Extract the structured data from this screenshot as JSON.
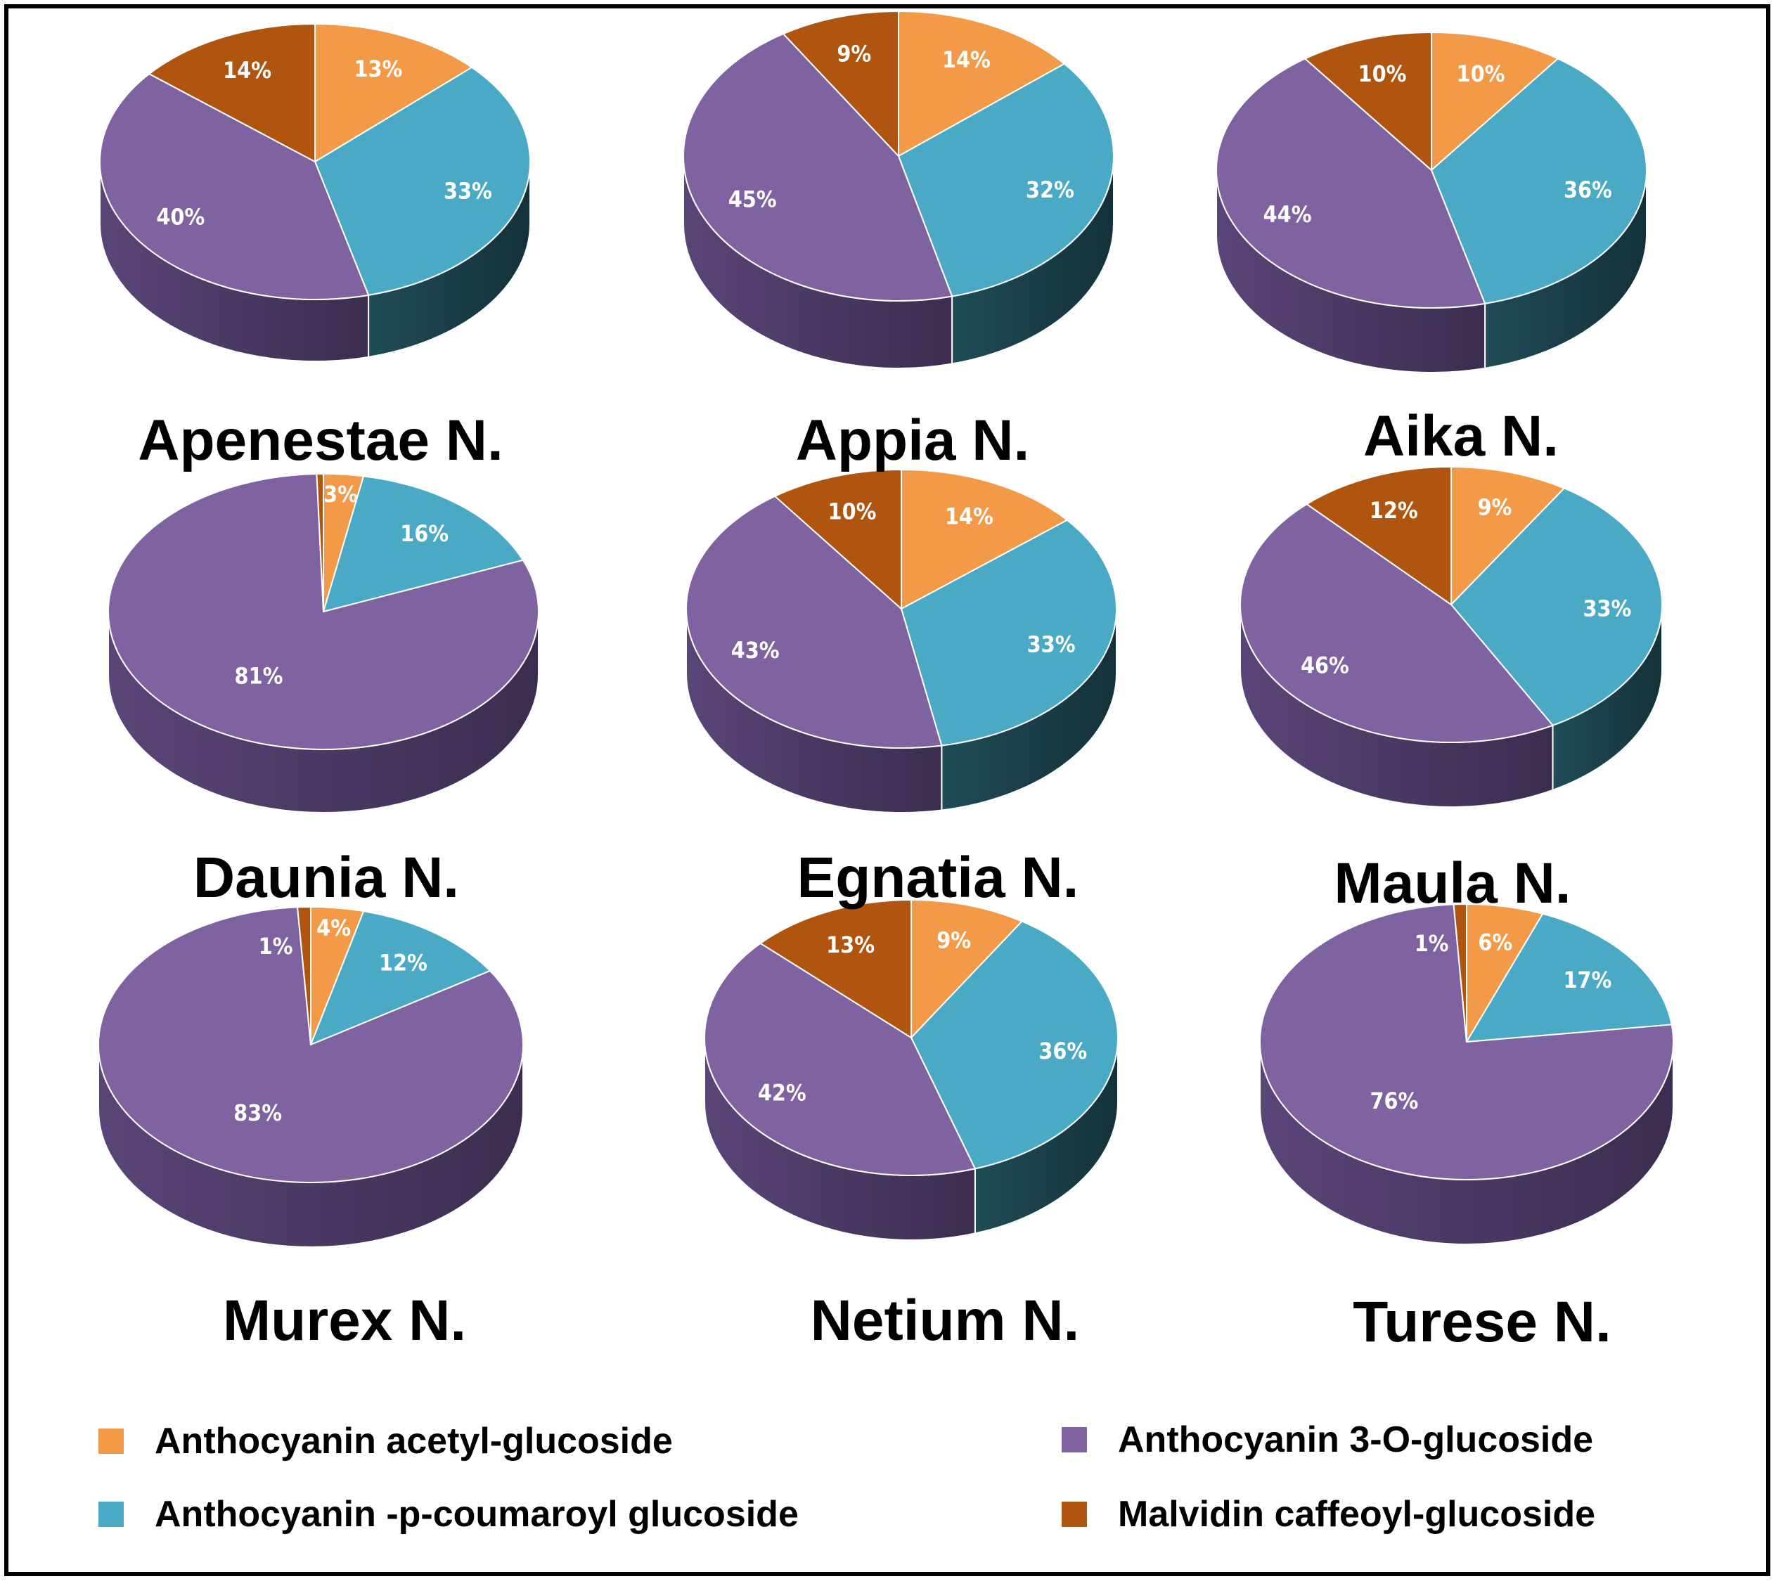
{
  "chart_data": [
    {
      "type": "pie",
      "title": "Apenestae N.",
      "categories": [
        "Anthocyanin acetyl-glucoside",
        "Anthocyanin -p-coumaroyl glucoside",
        "Anthocyanin 3-O-glucoside",
        "Malvidin caffeoyl-glucoside"
      ],
      "values": [
        13,
        33,
        40,
        14
      ],
      "labels": [
        "13%",
        "33%",
        "40%",
        "14%"
      ]
    },
    {
      "type": "pie",
      "title": "Appia N.",
      "categories": [
        "Anthocyanin acetyl-glucoside",
        "Anthocyanin -p-coumaroyl glucoside",
        "Anthocyanin 3-O-glucoside",
        "Malvidin caffeoyl-glucoside"
      ],
      "values": [
        14,
        32,
        45,
        9
      ],
      "labels": [
        "14%",
        "32%",
        "45%",
        "9%"
      ]
    },
    {
      "type": "pie",
      "title": "Aika N.",
      "categories": [
        "Anthocyanin acetyl-glucoside",
        "Anthocyanin -p-coumaroyl glucoside",
        "Anthocyanin 3-O-glucoside",
        "Malvidin caffeoyl-glucoside"
      ],
      "values": [
        10,
        36,
        44,
        10
      ],
      "labels": [
        "10%",
        "36%",
        "44%",
        "10%"
      ]
    },
    {
      "type": "pie",
      "title": "Daunia N.",
      "categories": [
        "Anthocyanin acetyl-glucoside",
        "Anthocyanin -p-coumaroyl glucoside",
        "Anthocyanin 3-O-glucoside",
        "Malvidin caffeoyl-glucoside"
      ],
      "values": [
        3,
        16,
        81,
        0.5
      ],
      "labels": [
        "3%",
        "16%",
        "81%",
        ""
      ]
    },
    {
      "type": "pie",
      "title": "Egnatia N.",
      "categories": [
        "Anthocyanin acetyl-glucoside",
        "Anthocyanin -p-coumaroyl glucoside",
        "Anthocyanin 3-O-glucoside",
        "Malvidin caffeoyl-glucoside"
      ],
      "values": [
        14,
        33,
        43,
        10
      ],
      "labels": [
        "14%",
        "33%",
        "43%",
        "10%"
      ]
    },
    {
      "type": "pie",
      "title": "Maula N.",
      "categories": [
        "Anthocyanin acetyl-glucoside",
        "Anthocyanin -p-coumaroyl glucoside",
        "Anthocyanin 3-O-glucoside",
        "Malvidin caffeoyl-glucoside"
      ],
      "values": [
        9,
        33,
        46,
        12
      ],
      "labels": [
        "9%",
        "33%",
        "46%",
        "12%"
      ]
    },
    {
      "type": "pie",
      "title": "Murex N.",
      "categories": [
        "Anthocyanin acetyl-glucoside",
        "Anthocyanin -p-coumaroyl glucoside",
        "Anthocyanin 3-O-glucoside",
        "Malvidin caffeoyl-glucoside"
      ],
      "values": [
        4,
        12,
        83,
        1
      ],
      "labels": [
        "4%",
        "12%",
        "83%",
        "1%"
      ]
    },
    {
      "type": "pie",
      "title": "Netium N.",
      "categories": [
        "Anthocyanin acetyl-glucoside",
        "Anthocyanin -p-coumaroyl glucoside",
        "Anthocyanin 3-O-glucoside",
        "Malvidin caffeoyl-glucoside"
      ],
      "values": [
        9,
        36,
        42,
        13
      ],
      "labels": [
        "9%",
        "36%",
        "42%",
        "13%"
      ]
    },
    {
      "type": "pie",
      "title": "Turese N.",
      "categories": [
        "Anthocyanin acetyl-glucoside",
        "Anthocyanin -p-coumaroyl glucoside",
        "Anthocyanin 3-O-glucoside",
        "Malvidin caffeoyl-glucoside"
      ],
      "values": [
        6,
        17,
        76,
        1
      ],
      "labels": [
        "6%",
        "17%",
        "76%",
        "1%"
      ]
    }
  ],
  "legend": {
    "placement": "bottom",
    "items": [
      {
        "label": "Anthocyanin acetyl-glucoside",
        "color": "#F29A48"
      },
      {
        "label": "Anthocyanin 3-O-glucoside",
        "color": "#7F62A0"
      },
      {
        "label": "Anthocyanin -p-coumaroyl glucoside",
        "color": "#4AAAC6"
      },
      {
        "label": "Malvidin caffeoyl-glucoside",
        "color": "#B05510"
      }
    ]
  },
  "colors": {
    "acetyl": "#F29A48",
    "coumaroyl": "#4AAAC6",
    "glucoside": "#7F62A0",
    "caffeoyl": "#B05510"
  }
}
